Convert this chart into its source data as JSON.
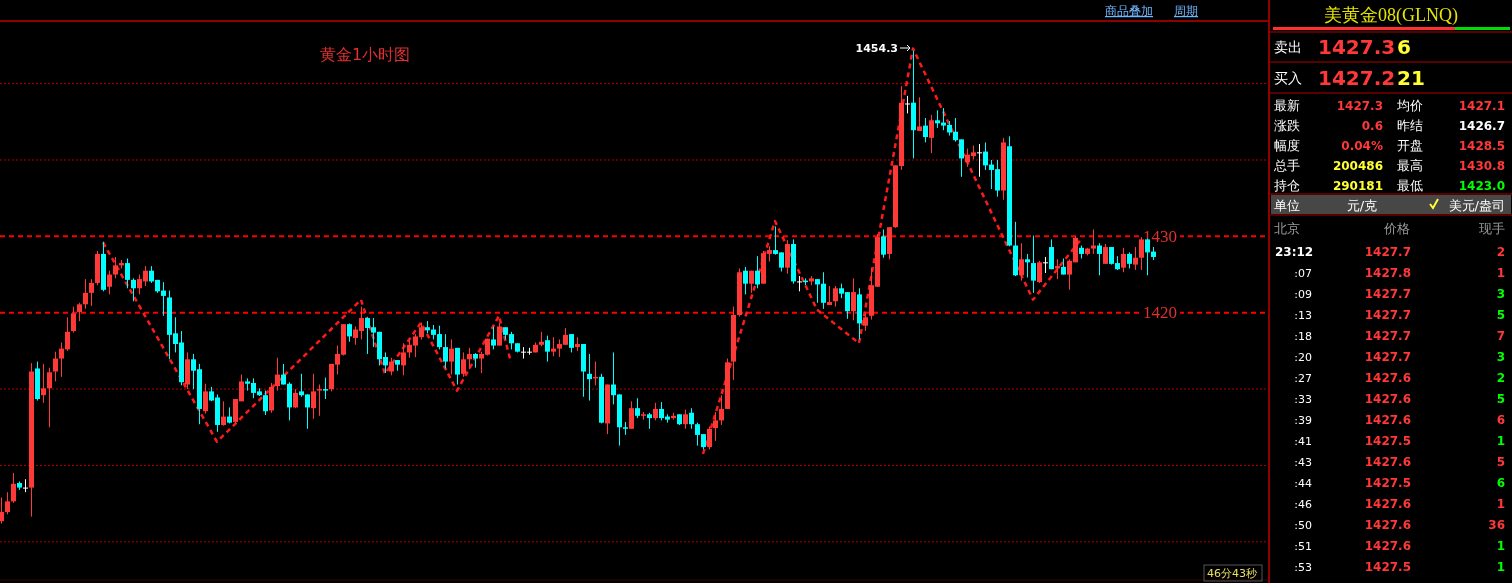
{
  "chart_data": [
    {
      "type": "candlestick",
      "title": "黄金1小时图",
      "categories": [
        null,
        null,
        null,
        null,
        null,
        null,
        null,
        null,
        null,
        null,
        null,
        null,
        null,
        null,
        null,
        null,
        null,
        null,
        null,
        null,
        null,
        null,
        null,
        null,
        null,
        null,
        null,
        null,
        null,
        null,
        null,
        null,
        null,
        null,
        null,
        null,
        null,
        null,
        null,
        null,
        null,
        null,
        null,
        null,
        null,
        null,
        null,
        null,
        null,
        null,
        null,
        null,
        null,
        null,
        null,
        null,
        null,
        null,
        null,
        null,
        null,
        null,
        null,
        null,
        null,
        null,
        null,
        null,
        null,
        null,
        null,
        null,
        null,
        null,
        null,
        null,
        null,
        null,
        null,
        null,
        null,
        null,
        null,
        null,
        null,
        null,
        null,
        null,
        null,
        null,
        null,
        null,
        null,
        null,
        null,
        null,
        null,
        null,
        null,
        null,
        null,
        null,
        null,
        null,
        null,
        null,
        null,
        null,
        null,
        null,
        null,
        null,
        null,
        null,
        null,
        null,
        null,
        null,
        null,
        null,
        null,
        null,
        null,
        null,
        null,
        null,
        null,
        null,
        null,
        null,
        null,
        null,
        null,
        null,
        null,
        null,
        null,
        null,
        null,
        null,
        null,
        null,
        null,
        null,
        null,
        null,
        null,
        null,
        null,
        null,
        null,
        null,
        null,
        null,
        null,
        null,
        null,
        null,
        null,
        null,
        null,
        null,
        null,
        null,
        null,
        null,
        null,
        null,
        null,
        null,
        null,
        null,
        null,
        null,
        null,
        null,
        null,
        null,
        null,
        null,
        null,
        null,
        null,
        null,
        null,
        null,
        null,
        null,
        null,
        null,
        null,
        null,
        null
      ],
      "ohlc": [
        [
          1392.7,
          1395.8,
          1392.4,
          1393.9
        ],
        [
          1393.9,
          1396.5,
          1393.6,
          1395.3
        ],
        [
          1395.3,
          1399.0,
          1395.1,
          1397.6
        ],
        [
          1397.7,
          1397.9,
          1396.8,
          1397.1
        ],
        [
          1397.1,
          1398.2,
          1396.5,
          1397.1
        ],
        [
          1397.1,
          1413.4,
          1393.3,
          1412.3
        ],
        [
          1412.7,
          1413.6,
          1408.5,
          1408.7
        ],
        [
          1409.2,
          1413.3,
          1408.2,
          1410.1
        ],
        [
          1410.1,
          1412.8,
          1405.0,
          1412.2
        ],
        [
          1412.3,
          1414.9,
          1411.0,
          1414.0
        ],
        [
          1414.0,
          1416.1,
          1411.6,
          1415.3
        ],
        [
          1415.2,
          1419.4,
          1415.0,
          1417.5
        ],
        [
          1417.6,
          1420.8,
          1417.4,
          1419.9
        ],
        [
          1420.1,
          1421.3,
          1418.9,
          1421.1
        ],
        [
          1421.1,
          1424.4,
          1420.5,
          1422.6
        ],
        [
          1422.6,
          1424.4,
          1420.9,
          1423.9
        ],
        [
          1423.9,
          1428.1,
          1423.6,
          1427.7
        ],
        [
          1427.7,
          1429.3,
          1422.8,
          1423.0
        ],
        [
          1423.4,
          1425.5,
          1422.4,
          1425.0
        ],
        [
          1425.0,
          1427.3,
          1424.5,
          1426.2
        ],
        [
          1426.2,
          1426.9,
          1425.8,
          1426.5
        ],
        [
          1426.5,
          1427.1,
          1423.2,
          1424.3
        ],
        [
          1424.3,
          1424.5,
          1421.5,
          1423.2
        ],
        [
          1423.2,
          1425.0,
          1422.4,
          1424.4
        ],
        [
          1424.1,
          1426.1,
          1423.5,
          1425.5
        ],
        [
          1425.5,
          1426.1,
          1423.9,
          1424.1
        ],
        [
          1424.3,
          1424.3,
          1422.6,
          1422.8
        ],
        [
          1422.9,
          1424.0,
          1419.6,
          1422.2
        ],
        [
          1422.0,
          1422.9,
          1413.9,
          1417.1
        ],
        [
          1417.3,
          1419.4,
          1414.8,
          1415.9
        ],
        [
          1416.1,
          1417.6,
          1410.5,
          1410.9
        ],
        [
          1410.6,
          1414.8,
          1410.0,
          1413.9
        ],
        [
          1413.9,
          1414.6,
          1410.0,
          1412.4
        ],
        [
          1412.6,
          1413.3,
          1405.4,
          1407.4
        ],
        [
          1407.1,
          1410.7,
          1406.8,
          1409.7
        ],
        [
          1409.7,
          1410.3,
          1408.4,
          1408.5
        ],
        [
          1408.9,
          1409.3,
          1404.4,
          1405.3
        ],
        [
          1405.3,
          1408.4,
          1405.2,
          1406.4
        ],
        [
          1406.4,
          1407.6,
          1405.5,
          1405.6
        ],
        [
          1405.7,
          1408.7,
          1405.5,
          1408.7
        ],
        [
          1408.4,
          1411.9,
          1408.4,
          1411.0
        ],
        [
          1411.0,
          1411.4,
          1409.8,
          1410.7
        ],
        [
          1410.8,
          1411.4,
          1408.8,
          1409.5
        ],
        [
          1409.7,
          1410.1,
          1409.1,
          1409.2
        ],
        [
          1409.2,
          1409.8,
          1406.6,
          1407.1
        ],
        [
          1407.2,
          1410.8,
          1406.9,
          1410.3
        ],
        [
          1410.4,
          1414.1,
          1409.8,
          1411.9
        ],
        [
          1411.9,
          1413.3,
          1410.6,
          1410.6
        ],
        [
          1410.7,
          1410.9,
          1405.9,
          1407.6
        ],
        [
          1407.6,
          1410.0,
          1407.5,
          1409.5
        ],
        [
          1409.7,
          1412.0,
          1409.0,
          1409.2
        ],
        [
          1409.3,
          1409.3,
          1404.8,
          1407.6
        ],
        [
          1407.5,
          1412.0,
          1406.1,
          1409.7
        ],
        [
          1409.8,
          1410.6,
          1406.5,
          1410.0
        ],
        [
          1410.0,
          1411.5,
          1408.7,
          1409.8
        ],
        [
          1410.0,
          1413.3,
          1409.7,
          1413.3
        ],
        [
          1413.2,
          1415.7,
          1411.9,
          1414.6
        ],
        [
          1414.5,
          1418.5,
          1414.4,
          1418.5
        ],
        [
          1418.5,
          1418.6,
          1416.2,
          1416.9
        ],
        [
          1416.7,
          1418.2,
          1415.8,
          1417.8
        ],
        [
          1417.6,
          1420.8,
          1416.5,
          1419.3
        ],
        [
          1419.3,
          1419.4,
          1414.6,
          1418.0
        ],
        [
          1418.1,
          1419.3,
          1415.5,
          1417.4
        ],
        [
          1417.5,
          1417.5,
          1413.1,
          1413.9
        ],
        [
          1414.2,
          1414.8,
          1412.1,
          1413.1
        ],
        [
          1412.3,
          1414.1,
          1411.8,
          1413.6
        ],
        [
          1413.8,
          1413.8,
          1412.4,
          1413.2
        ],
        [
          1413.1,
          1416.0,
          1411.8,
          1414.8
        ],
        [
          1414.8,
          1416.5,
          1414.1,
          1415.8
        ],
        [
          1415.7,
          1417.2,
          1414.2,
          1416.9
        ],
        [
          1416.8,
          1418.7,
          1416.5,
          1418.1
        ],
        [
          1418.1,
          1418.9,
          1417.3,
          1417.7
        ],
        [
          1417.8,
          1418.4,
          1416.5,
          1417.1
        ],
        [
          1417.2,
          1418.3,
          1415.2,
          1415.5
        ],
        [
          1415.5,
          1417.2,
          1412.7,
          1413.6
        ],
        [
          1413.6,
          1416.5,
          1411.9,
          1415.3
        ],
        [
          1415.4,
          1415.4,
          1410.6,
          1411.9
        ],
        [
          1412.0,
          1414.8,
          1411.6,
          1413.9
        ],
        [
          1413.9,
          1415.4,
          1412.6,
          1414.6
        ],
        [
          1414.6,
          1414.7,
          1412.8,
          1414.0
        ],
        [
          1414.0,
          1414.9,
          1412.1,
          1414.6
        ],
        [
          1414.5,
          1416.6,
          1414.4,
          1416.6
        ],
        [
          1416.5,
          1418.2,
          1415.2,
          1415.7
        ],
        [
          1415.7,
          1418.7,
          1415.7,
          1418.2
        ],
        [
          1418.1,
          1418.1,
          1416.5,
          1417.1
        ],
        [
          1417.2,
          1417.5,
          1415.2,
          1416.0
        ],
        [
          1416.0,
          1416.0,
          1414.8,
          1414.9
        ],
        [
          1414.9,
          1415.5,
          1414.0,
          1414.9
        ],
        [
          1414.9,
          1415.4,
          1414.5,
          1414.9
        ],
        [
          1414.8,
          1416.1,
          1414.8,
          1415.8
        ],
        [
          1415.8,
          1417.5,
          1415.6,
          1416.2
        ],
        [
          1416.4,
          1417.0,
          1413.6,
          1414.9
        ],
        [
          1414.9,
          1416.8,
          1414.3,
          1415.3
        ],
        [
          1415.3,
          1416.5,
          1414.2,
          1415.9
        ],
        [
          1415.8,
          1418.0,
          1415.8,
          1417.1
        ],
        [
          1417.2,
          1417.2,
          1414.8,
          1415.4
        ],
        [
          1415.5,
          1416.8,
          1415.0,
          1415.9
        ],
        [
          1415.9,
          1415.9,
          1409.0,
          1412.3
        ],
        [
          1412.0,
          1414.6,
          1408.5,
          1411.3
        ],
        [
          1411.4,
          1413.6,
          1410.5,
          1411.6
        ],
        [
          1411.6,
          1412.0,
          1405.5,
          1405.6
        ],
        [
          1405.5,
          1410.6,
          1404.1,
          1410.6
        ],
        [
          1410.6,
          1414.8,
          1408.0,
          1409.2
        ],
        [
          1409.3,
          1409.3,
          1402.6,
          1405.0
        ],
        [
          1405.0,
          1405.7,
          1404.0,
          1404.8
        ],
        [
          1404.8,
          1408.4,
          1404.8,
          1407.5
        ],
        [
          1407.5,
          1408.8,
          1406.2,
          1406.5
        ],
        [
          1406.5,
          1407.0,
          1406.0,
          1406.7
        ],
        [
          1406.7,
          1406.9,
          1404.8,
          1406.2
        ],
        [
          1406.2,
          1408.2,
          1405.9,
          1407.4
        ],
        [
          1407.4,
          1408.3,
          1405.9,
          1406.2
        ],
        [
          1406.4,
          1406.7,
          1405.6,
          1406.0
        ],
        [
          1406.2,
          1406.9,
          1406.0,
          1406.5
        ],
        [
          1406.7,
          1406.7,
          1405.3,
          1405.4
        ],
        [
          1405.4,
          1407.3,
          1404.8,
          1406.7
        ],
        [
          1406.9,
          1407.5,
          1404.8,
          1405.4
        ],
        [
          1405.4,
          1405.6,
          1402.6,
          1404.0
        ],
        [
          1404.1,
          1404.1,
          1402.1,
          1402.4
        ],
        [
          1402.4,
          1405.1,
          1402.1,
          1404.8
        ],
        [
          1404.9,
          1407.0,
          1403.2,
          1405.9
        ],
        [
          1405.9,
          1409.2,
          1405.3,
          1407.4
        ],
        [
          1407.4,
          1414.0,
          1407.4,
          1413.5
        ],
        [
          1413.6,
          1420.8,
          1411.2,
          1419.7
        ],
        [
          1419.7,
          1425.8,
          1419.5,
          1425.3
        ],
        [
          1425.5,
          1426.0,
          1422.4,
          1423.8
        ],
        [
          1423.8,
          1425.5,
          1422.6,
          1425.5
        ],
        [
          1425.5,
          1427.4,
          1423.2,
          1423.7
        ],
        [
          1423.8,
          1428.1,
          1423.8,
          1427.8
        ],
        [
          1427.7,
          1428.7,
          1426.7,
          1428.2
        ],
        [
          1428.2,
          1431.3,
          1427.6,
          1427.7
        ],
        [
          1427.9,
          1427.9,
          1425.4,
          1425.9
        ],
        [
          1425.9,
          1429.5,
          1425.1,
          1429.0
        ],
        [
          1429.0,
          1429.6,
          1423.8,
          1424.1
        ],
        [
          1424.1,
          1424.8,
          1422.8,
          1424.1
        ],
        [
          1424.2,
          1424.5,
          1423.6,
          1424.0
        ],
        [
          1424.1,
          1424.8,
          1423.6,
          1424.5
        ],
        [
          1424.4,
          1424.4,
          1421.3,
          1423.7
        ],
        [
          1423.8,
          1425.3,
          1420.5,
          1421.3
        ],
        [
          1421.0,
          1423.5,
          1421.0,
          1421.4
        ],
        [
          1421.5,
          1423.5,
          1420.8,
          1423.2
        ],
        [
          1423.2,
          1423.8,
          1421.9,
          1422.5
        ],
        [
          1422.7,
          1422.7,
          1419.2,
          1420.2
        ],
        [
          1420.2,
          1424.5,
          1419.0,
          1422.7
        ],
        [
          1422.4,
          1423.2,
          1416.5,
          1418.6
        ],
        [
          1418.3,
          1419.9,
          1417.6,
          1419.4
        ],
        [
          1419.6,
          1425.9,
          1419.1,
          1423.6
        ],
        [
          1423.4,
          1430.3,
          1423.4,
          1429.9
        ],
        [
          1430.0,
          1430.9,
          1427.2,
          1427.6
        ],
        [
          1427.7,
          1431.2,
          1427.0,
          1431.2
        ],
        [
          1431.2,
          1439.3,
          1431.1,
          1439.3
        ],
        [
          1439.2,
          1449.7,
          1438.7,
          1447.5
        ],
        [
          1447.4,
          1448.4,
          1446.1,
          1447.4
        ],
        [
          1447.5,
          1454.3,
          1440.2,
          1443.9
        ],
        [
          1443.8,
          1448.2,
          1443.8,
          1444.4
        ],
        [
          1444.5,
          1445.5,
          1442.3,
          1443.0
        ],
        [
          1442.9,
          1445.9,
          1440.9,
          1445.2
        ],
        [
          1445.2,
          1446.5,
          1444.2,
          1444.8
        ],
        [
          1444.9,
          1446.8,
          1443.9,
          1444.5
        ],
        [
          1444.6,
          1445.1,
          1443.2,
          1443.6
        ],
        [
          1443.7,
          1445.5,
          1442.4,
          1442.6
        ],
        [
          1442.7,
          1442.7,
          1437.8,
          1440.2
        ],
        [
          1439.7,
          1441.5,
          1439.1,
          1440.7
        ],
        [
          1440.5,
          1441.9,
          1440.1,
          1441.0
        ],
        [
          1441.0,
          1442.1,
          1437.8,
          1441.0
        ],
        [
          1441.1,
          1442.3,
          1438.7,
          1439.3
        ],
        [
          1439.4,
          1440.0,
          1436.2,
          1438.7
        ],
        [
          1438.8,
          1440.0,
          1435.2,
          1436.0
        ],
        [
          1436.0,
          1442.9,
          1434.8,
          1442.3
        ],
        [
          1441.8,
          1443.1,
          1428.7,
          1428.8
        ],
        [
          1428.8,
          1431.9,
          1424.8,
          1424.9
        ],
        [
          1424.9,
          1429.1,
          1424.2,
          1427.0
        ],
        [
          1427.0,
          1427.7,
          1424.6,
          1426.6
        ],
        [
          1426.5,
          1430.1,
          1422.6,
          1424.2
        ],
        [
          1424.0,
          1426.8,
          1423.9,
          1426.6
        ],
        [
          1426.6,
          1427.3,
          1425.2,
          1426.6
        ],
        [
          1428.6,
          1429.6,
          1425.7,
          1425.7
        ],
        [
          1425.8,
          1427.0,
          1424.4,
          1426.1
        ],
        [
          1426.0,
          1427.1,
          1425.0,
          1425.0
        ],
        [
          1425.0,
          1427.0,
          1423.0,
          1426.8
        ],
        [
          1426.6,
          1430.0,
          1426.6,
          1429.8
        ],
        [
          1428.5,
          1428.8,
          1427.1,
          1427.7
        ],
        [
          1427.7,
          1428.5,
          1427.5,
          1428.4
        ],
        [
          1428.4,
          1430.9,
          1427.7,
          1428.8
        ],
        [
          1428.8,
          1429.1,
          1424.9,
          1427.7
        ],
        [
          1426.4,
          1429.0,
          1426.4,
          1428.6
        ],
        [
          1428.6,
          1428.6,
          1426.3,
          1426.4
        ],
        [
          1426.5,
          1427.4,
          1425.6,
          1425.7
        ],
        [
          1425.9,
          1428.5,
          1425.3,
          1427.7
        ],
        [
          1427.7,
          1427.9,
          1425.8,
          1426.4
        ],
        [
          1426.3,
          1428.6,
          1425.6,
          1427.2
        ],
        [
          1427.2,
          1429.9,
          1425.6,
          1429.6
        ],
        [
          1429.6,
          1429.7,
          1424.9,
          1427.9
        ],
        [
          1428.0,
          1428.6,
          1426.9,
          1427.3
        ]
      ],
      "series": [
        {
          "type": "line",
          "color": "#ff1a1a",
          "line_style": "dashed",
          "values": [
            null,
            null,
            null,
            null,
            null,
            null,
            null,
            null,
            null,
            null,
            null,
            null,
            null,
            null,
            null,
            null,
            null,
            1429.2,
            null,
            null,
            null,
            null,
            null,
            null,
            null,
            null,
            null,
            null,
            null,
            null,
            null,
            null,
            null,
            null,
            null,
            null,
            1403.1,
            null,
            null,
            null,
            null,
            null,
            null,
            null,
            null,
            null,
            null,
            null,
            null,
            null,
            null,
            null,
            null,
            null,
            null,
            null,
            null,
            null,
            null,
            null,
            1421.7,
            null,
            null,
            null,
            1412.0,
            null,
            null,
            null,
            null,
            null,
            1418.7,
            null,
            null,
            null,
            null,
            null,
            1409.8,
            null,
            null,
            null,
            null,
            null,
            null,
            1419.6,
            null,
            1413.5,
            null,
            null,
            null,
            null,
            null,
            null,
            null,
            null,
            null,
            null,
            null,
            null,
            null,
            null,
            null,
            null,
            null,
            null,
            null,
            null,
            null,
            null,
            null,
            null,
            null,
            null,
            null,
            null,
            null,
            null,
            null,
            null,
            null,
            null,
            null,
            null,
            null,
            null,
            null,
            null,
            null,
            null,
            null,
            null,
            null,
            null,
            null,
            null,
            null,
            null,
            null,
            null,
            null,
            null,
            null,
            null,
            null,
            null,
            null,
            null,
            null,
            null,
            null,
            null,
            null,
            null,
            null,
            null,
            null,
            null,
            null,
            null,
            null,
            null,
            null,
            null,
            null,
            null,
            null,
            null,
            null,
            null,
            null,
            null,
            null,
            null,
            null,
            null,
            null,
            null,
            null,
            null,
            null,
            null,
            null,
            null,
            null,
            null,
            null,
            null,
            null,
            null,
            null,
            null,
            null,
            null,
            null
          ]
        },
        {
          "type": "line",
          "color": "#ff1a1a",
          "line_style": "dashed",
          "values": [
            null,
            null,
            null,
            null,
            null,
            null,
            null,
            null,
            null,
            null,
            null,
            null,
            null,
            null,
            null,
            null,
            null,
            null,
            null,
            null,
            null,
            null,
            null,
            null,
            null,
            null,
            null,
            null,
            null,
            null,
            null,
            null,
            null,
            null,
            null,
            null,
            null,
            null,
            null,
            null,
            null,
            null,
            null,
            null,
            null,
            null,
            null,
            null,
            null,
            null,
            null,
            null,
            null,
            null,
            null,
            null,
            null,
            null,
            null,
            null,
            null,
            null,
            null,
            null,
            null,
            null,
            null,
            null,
            null,
            null,
            null,
            null,
            null,
            null,
            null,
            null,
            null,
            null,
            null,
            null,
            null,
            null,
            null,
            null,
            null,
            null,
            null,
            null,
            null,
            null,
            null,
            null,
            null,
            null,
            null,
            null,
            null,
            null,
            null,
            null,
            null,
            null,
            null,
            null,
            null,
            null,
            null,
            null,
            null,
            null,
            null,
            null,
            null,
            null,
            null,
            null,
            null,
            1401.5,
            null,
            null,
            null,
            null,
            null,
            null,
            null,
            null,
            null,
            null,
            null,
            1432.0,
            null,
            null,
            null,
            null,
            null,
            null,
            1420.4,
            null,
            null,
            null,
            null,
            null,
            null,
            1416.0,
            null,
            null,
            null,
            null,
            null,
            null,
            null,
            null,
            1454.6,
            null,
            null,
            null,
            null,
            null,
            null,
            null,
            null,
            null,
            null,
            null,
            null,
            null,
            null,
            null,
            null,
            null,
            null,
            null,
            1421.7,
            null,
            null,
            null,
            null,
            null,
            null,
            null,
            1429.6,
            null,
            null,
            null,
            null,
            null,
            null,
            null,
            null,
            null,
            null,
            null,
            null
          ]
        }
      ],
      "ylim": [
        1385,
        1458.2
      ],
      "yticks": [
        {
          "value": 1390,
          "label": null
        },
        {
          "value": 1400,
          "label": null
        },
        {
          "value": 1410,
          "label": null
        },
        {
          "value": 1420,
          "label": "1420"
        },
        {
          "value": 1430,
          "label": "1430"
        },
        {
          "value": 1440,
          "label": null
        },
        {
          "value": 1450,
          "label": null
        }
      ],
      "grid": "y",
      "tick_labels": "y",
      "annotations": [
        "1454.3",
        "商品叠加",
        "周期",
        "46分43秒"
      ]
    },
    {
      "type": "other",
      "title": "美黄金08(GLNQ)",
      "annotations": [
        "卖出",
        "1427.3",
        "6",
        "买入",
        "1427.2",
        "21",
        "最新",
        "1427.3",
        "均价",
        "1427.1",
        "涨跌",
        "0.6",
        "昨结",
        "1426.7",
        "幅度",
        "0.04%",
        "开盘",
        "1428.5",
        "总手",
        "200486",
        "最高",
        "1430.8",
        "持仓",
        "290181",
        "最低",
        "1423.0",
        "单位",
        "元/克",
        "美元/盎司",
        "北京",
        "价格",
        "现手",
        "23:12",
        "1427.7",
        "2",
        ":07",
        "1427.8",
        "1",
        ":09",
        "1427.7",
        "3",
        ":13",
        "1427.7",
        "5",
        ":18",
        "1427.7",
        "7",
        ":20",
        "1427.7",
        "3",
        ":27",
        "1427.6",
        "2",
        ":33",
        "1427.6",
        "5",
        ":39",
        "1427.6",
        "6",
        ":41",
        "1427.5",
        "1",
        ":43",
        "1427.6",
        "5",
        ":44",
        "1427.5",
        "6",
        ":46",
        "1427.6",
        "1",
        ":50",
        "1427.6",
        "36",
        ":51",
        "1427.6",
        "1",
        ":53",
        "1427.5",
        "1"
      ]
    }
  ]
}
